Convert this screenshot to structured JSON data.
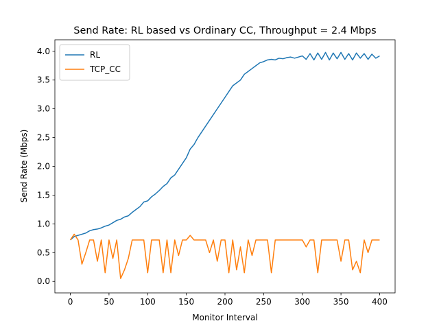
{
  "chart_data": {
    "type": "line",
    "title": "Send Rate: RL based vs Ordinary CC, Throughput = 2.4 Mbps",
    "xlabel": "Monitor Interval",
    "ylabel": "Send Rate (Mbps)",
    "x": [
      0,
      5,
      10,
      15,
      20,
      25,
      30,
      35,
      40,
      45,
      50,
      55,
      60,
      65,
      70,
      75,
      80,
      85,
      90,
      95,
      100,
      105,
      110,
      115,
      120,
      125,
      130,
      135,
      140,
      145,
      150,
      155,
      160,
      165,
      170,
      175,
      180,
      185,
      190,
      195,
      200,
      205,
      210,
      215,
      220,
      225,
      230,
      235,
      240,
      245,
      250,
      255,
      260,
      265,
      270,
      275,
      280,
      285,
      290,
      295,
      300,
      305,
      310,
      315,
      320,
      325,
      330,
      335,
      340,
      345,
      350,
      355,
      360,
      365,
      370,
      375,
      380,
      385,
      390,
      395,
      400
    ],
    "series": [
      {
        "name": "RL",
        "color": "#1f77b4",
        "values": [
          0.72,
          0.78,
          0.8,
          0.82,
          0.84,
          0.88,
          0.9,
          0.91,
          0.93,
          0.96,
          0.98,
          1.02,
          1.06,
          1.08,
          1.12,
          1.14,
          1.2,
          1.25,
          1.3,
          1.38,
          1.4,
          1.47,
          1.52,
          1.58,
          1.65,
          1.7,
          1.8,
          1.85,
          1.95,
          2.05,
          2.15,
          2.3,
          2.38,
          2.5,
          2.6,
          2.7,
          2.8,
          2.9,
          3.0,
          3.1,
          3.2,
          3.3,
          3.4,
          3.45,
          3.5,
          3.6,
          3.65,
          3.7,
          3.75,
          3.8,
          3.82,
          3.85,
          3.86,
          3.85,
          3.88,
          3.87,
          3.89,
          3.9,
          3.88,
          3.9,
          3.92,
          3.86,
          3.96,
          3.85,
          3.97,
          3.86,
          3.98,
          3.85,
          3.97,
          3.87,
          3.98,
          3.86,
          3.96,
          3.85,
          3.97,
          3.88,
          3.96,
          3.86,
          3.95,
          3.88,
          3.92
        ]
      },
      {
        "name": "TCP_CC",
        "color": "#ff7f0e",
        "values": [
          0.72,
          0.82,
          0.72,
          0.3,
          0.5,
          0.72,
          0.72,
          0.35,
          0.72,
          0.15,
          0.72,
          0.4,
          0.72,
          0.05,
          0.2,
          0.4,
          0.72,
          0.72,
          0.72,
          0.72,
          0.15,
          0.72,
          0.72,
          0.72,
          0.15,
          0.72,
          0.15,
          0.72,
          0.45,
          0.72,
          0.72,
          0.8,
          0.72,
          0.72,
          0.72,
          0.72,
          0.5,
          0.72,
          0.35,
          0.72,
          0.72,
          0.15,
          0.72,
          0.2,
          0.6,
          0.15,
          0.72,
          0.45,
          0.72,
          0.72,
          0.72,
          0.72,
          0.15,
          0.72,
          0.72,
          0.72,
          0.72,
          0.72,
          0.72,
          0.72,
          0.72,
          0.6,
          0.72,
          0.72,
          0.15,
          0.72,
          0.72,
          0.72,
          0.72,
          0.72,
          0.35,
          0.72,
          0.72,
          0.2,
          0.35,
          0.15,
          0.72,
          0.5,
          0.72,
          0.72,
          0.72
        ]
      }
    ],
    "xlim": [
      -20,
      420
    ],
    "ylim": [
      -0.2,
      4.2
    ],
    "xticks": [
      0,
      50,
      100,
      150,
      200,
      250,
      300,
      350,
      400
    ],
    "yticks": [
      {
        "value": 0,
        "label": "0.0"
      },
      0.5,
      {
        "value": 1,
        "label": "1.0"
      },
      1.5,
      {
        "value": 2,
        "label": "2.0"
      },
      2.5,
      {
        "value": 3,
        "label": "3.0"
      },
      3.5,
      {
        "value": 4,
        "label": "4.0"
      }
    ],
    "legend": "upper left"
  }
}
